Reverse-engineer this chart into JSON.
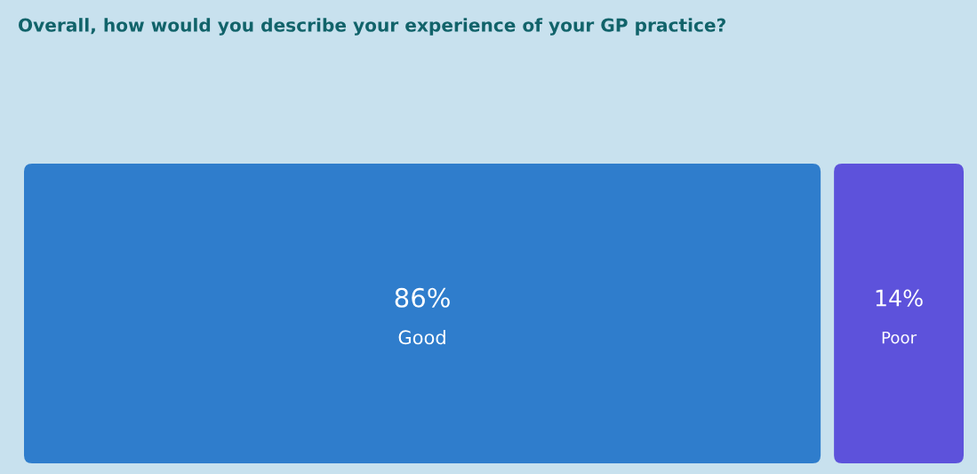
{
  "chart_data": {
    "type": "other",
    "title": "Overall, how would you describe your experience of your GP practice?",
    "categories": [
      "Good",
      "Poor"
    ],
    "values": [
      86,
      14
    ],
    "colors": [
      "#2f7dcc",
      "#5d52db"
    ],
    "value_labels": [
      "86%",
      "14%"
    ]
  }
}
